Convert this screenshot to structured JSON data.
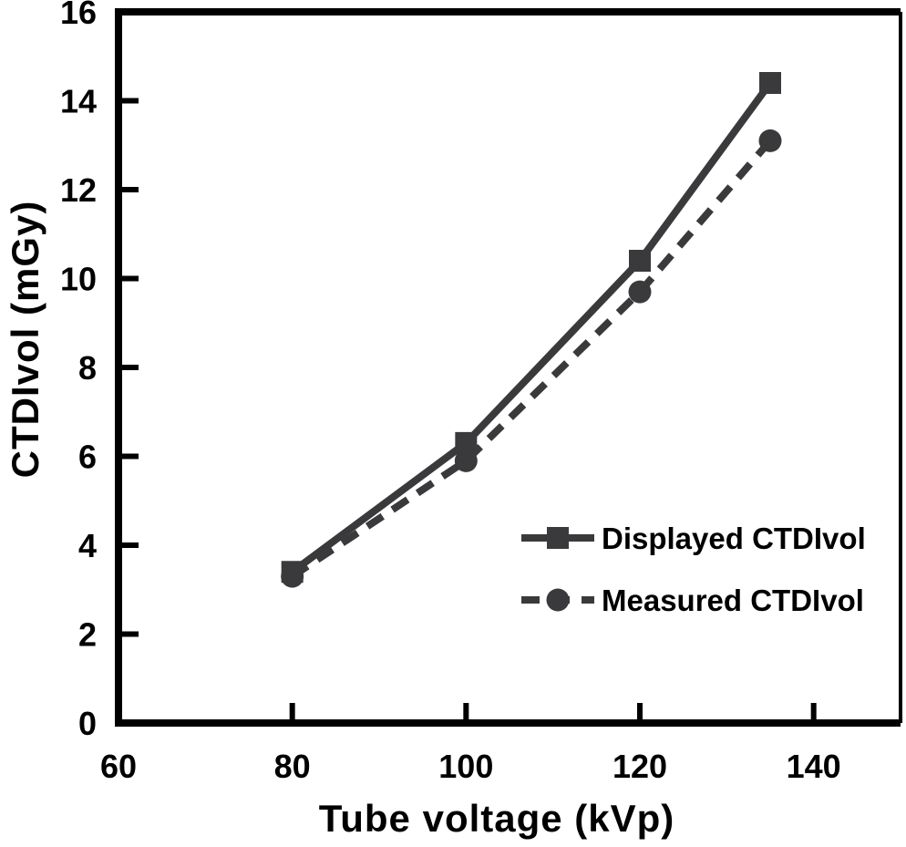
{
  "chart_data": {
    "type": "line",
    "title": "",
    "xlabel": "Tube voltage (kVp)",
    "ylabel": "CTDIvol (mGy)",
    "xlim": [
      60,
      150
    ],
    "ylim": [
      0,
      16
    ],
    "x_ticks": [
      60,
      80,
      100,
      120,
      140
    ],
    "y_ticks": [
      0,
      2,
      4,
      6,
      8,
      10,
      12,
      14,
      16
    ],
    "grid": false,
    "legend_position": "inside-lower-right",
    "x": [
      80,
      100,
      120,
      135
    ],
    "series": [
      {
        "name": "Displayed CTDIvol",
        "values": [
          3.4,
          6.3,
          10.4,
          14.4
        ],
        "line_style": "solid",
        "marker": "square"
      },
      {
        "name": "Measured CTDIvol",
        "values": [
          3.3,
          5.9,
          9.7,
          13.1
        ],
        "line_style": "dashed",
        "marker": "circle"
      }
    ],
    "colors": {
      "series": "#3a3a3c",
      "axis": "#000000",
      "text": "#000000",
      "background": "#ffffff"
    }
  }
}
